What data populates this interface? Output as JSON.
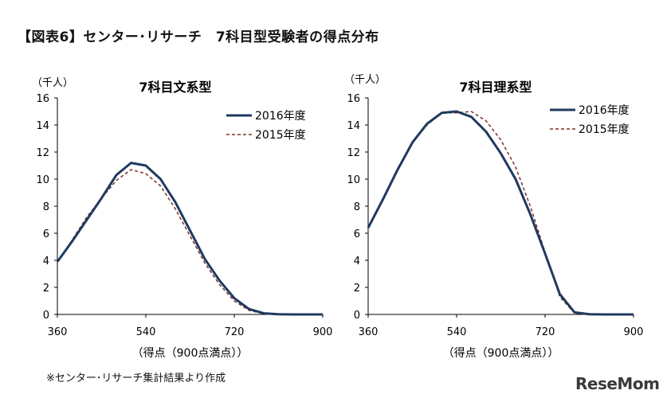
{
  "page": {
    "title": "【図表6】センター･リサーチ　7科目型受験者の得点分布",
    "source_note": "※センター･リサーチ集計結果より作成",
    "brand": "ReseMom"
  },
  "colors": {
    "series_2016": "#1f3a5f",
    "series_2015": "#7b3026",
    "axis": "#000000"
  },
  "chart_data": [
    {
      "type": "line",
      "title": "7科目文系型",
      "xlabel": "（得点（900点満点））",
      "ylabel": "（千人）",
      "xlim": [
        360,
        900
      ],
      "ylim": [
        0,
        16
      ],
      "x_ticks": [
        360,
        540,
        720,
        900
      ],
      "y_ticks": [
        0,
        2,
        4,
        6,
        8,
        10,
        12,
        14,
        16
      ],
      "legend": "top-right",
      "x": [
        360,
        390,
        420,
        450,
        480,
        510,
        540,
        570,
        600,
        630,
        660,
        690,
        720,
        750,
        780,
        810,
        840,
        870,
        900
      ],
      "series": [
        {
          "name": "2016年度",
          "values": [
            3.9,
            5.4,
            7.0,
            8.6,
            10.3,
            11.2,
            11.0,
            10.0,
            8.3,
            6.2,
            4.1,
            2.5,
            1.2,
            0.4,
            0.08,
            0.02,
            0,
            0,
            0
          ]
        },
        {
          "name": "2015年度",
          "values": [
            3.9,
            5.5,
            7.2,
            8.6,
            9.9,
            10.7,
            10.4,
            9.5,
            7.8,
            5.8,
            3.8,
            2.2,
            1.0,
            0.3,
            0.05,
            0.01,
            0,
            0,
            0
          ]
        }
      ]
    },
    {
      "type": "line",
      "title": "7科目理系型",
      "xlabel": "（得点（900点満点））",
      "ylabel": "（千人）",
      "xlim": [
        360,
        900
      ],
      "ylim": [
        0,
        16
      ],
      "x_ticks": [
        360,
        540,
        720,
        900
      ],
      "y_ticks": [
        0,
        2,
        4,
        6,
        8,
        10,
        12,
        14,
        16
      ],
      "legend": "top-right",
      "x": [
        360,
        390,
        420,
        450,
        480,
        510,
        540,
        570,
        600,
        630,
        660,
        690,
        720,
        750,
        780,
        810,
        840,
        870,
        900
      ],
      "series": [
        {
          "name": "2016年度",
          "values": [
            6.4,
            8.5,
            10.7,
            12.7,
            14.1,
            14.9,
            15.0,
            14.6,
            13.5,
            11.9,
            10.0,
            7.4,
            4.5,
            1.5,
            0.15,
            0.02,
            0,
            0,
            0
          ]
        },
        {
          "name": "2015年度",
          "values": [
            6.4,
            8.5,
            10.8,
            12.7,
            14.0,
            14.9,
            14.9,
            15.0,
            14.3,
            12.9,
            10.9,
            8.0,
            4.6,
            1.3,
            0.1,
            0.01,
            0,
            0,
            0
          ]
        }
      ]
    }
  ]
}
